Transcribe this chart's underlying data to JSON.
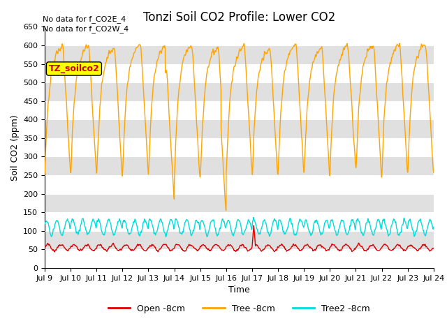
{
  "title": "Tonzi Soil CO2 Profile: Lower CO2",
  "xlabel": "Time",
  "ylabel": "Soil CO2 (ppm)",
  "ylim": [
    0,
    650
  ],
  "yticks": [
    0,
    50,
    100,
    150,
    200,
    250,
    300,
    350,
    400,
    450,
    500,
    550,
    600,
    650
  ],
  "text_no_data_1": "No data for f_CO2E_4",
  "text_no_data_2": "No data for f_CO2W_4",
  "legend_label": "TZ_soilco2",
  "legend_text_color": "#cc0000",
  "legend_box_color": "#ffff00",
  "line_open_label": "Open -8cm",
  "line_tree_label": "Tree -8cm",
  "line_tree2_label": "Tree2 -8cm",
  "line_open_color": "#dd0000",
  "line_tree_color": "#ffa500",
  "line_tree2_color": "#00dddd",
  "background_band_color": "#e0e0e0",
  "start_day": 9,
  "end_day": 24,
  "n_points": 3000,
  "title_fontsize": 12,
  "axis_label_fontsize": 9,
  "tick_fontsize": 8,
  "legend_fontsize": 9
}
